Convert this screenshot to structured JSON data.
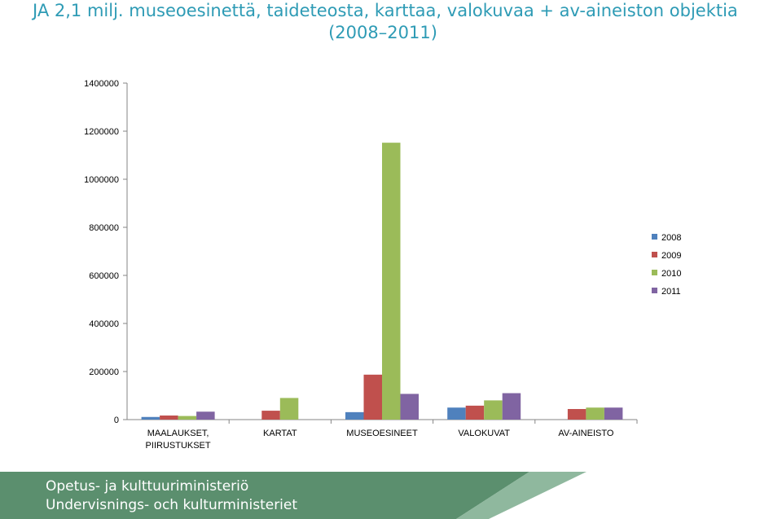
{
  "title": {
    "line1": "JA 2,1 milj. museoesinettä, taideteosta, karttaa, valokuvaa + av-aineiston objektia",
    "line2": "(2008–2011)"
  },
  "chart_data": {
    "type": "bar",
    "title": "",
    "xlabel": "",
    "ylabel": "",
    "ylim": [
      0,
      1400000
    ],
    "yticks": [
      "0",
      "200000",
      "400000",
      "600000",
      "800000",
      "1000000",
      "1200000",
      "1400000"
    ],
    "categories": [
      [
        "MAALAUKSET,",
        "PIIRUSTUKSET"
      ],
      [
        "KARTAT"
      ],
      [
        "MUSEOESINEET"
      ],
      [
        "VALOKUVAT"
      ],
      [
        "AV-AINEISTO"
      ]
    ],
    "series": [
      {
        "name": "2008",
        "color": "#4f81bd",
        "values": [
          11000,
          0,
          31000,
          50000,
          0
        ]
      },
      {
        "name": "2009",
        "color": "#c0504d",
        "values": [
          17000,
          37000,
          187000,
          58000,
          44000
        ]
      },
      {
        "name": "2010",
        "color": "#9bbb59",
        "values": [
          15000,
          90000,
          1152000,
          80000,
          50000
        ]
      },
      {
        "name": "2011",
        "color": "#8064a2",
        "values": [
          33000,
          0,
          107000,
          110000,
          50000
        ]
      }
    ],
    "grid": true,
    "legend": "right"
  },
  "footer": {
    "org_fi": "Opetus- ja kulttuuriministeriö",
    "org_sv": "Undervisnings- och kulturministeriet",
    "colors": {
      "band": "#5b8f6e",
      "accent": "#8fb89e"
    }
  }
}
